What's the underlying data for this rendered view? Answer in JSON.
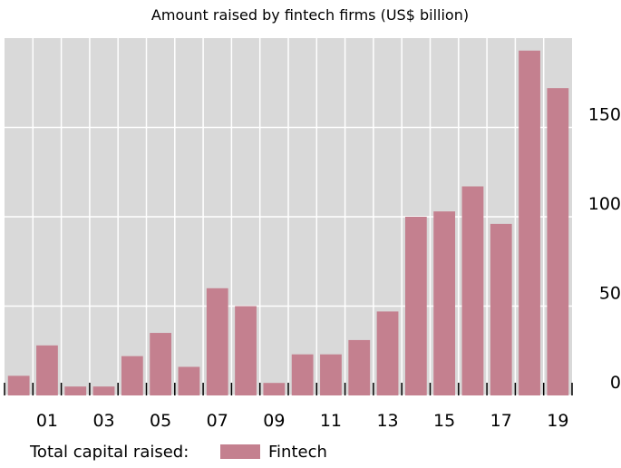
{
  "chart_data": {
    "type": "bar",
    "title": "Amount raised by fintech firms (US$ billion)",
    "categories": [
      null,
      "01",
      null,
      "03",
      null,
      "05",
      null,
      "07",
      null,
      "09",
      null,
      "11",
      null,
      "13",
      null,
      "15",
      null,
      "17",
      null,
      "19"
    ],
    "series": [
      {
        "name": "Fintech",
        "color": "#c4808f",
        "values": [
          11,
          28,
          5,
          5,
          22,
          35,
          16,
          60,
          50,
          7,
          23,
          23,
          31,
          47,
          100,
          103,
          117,
          96,
          193,
          172
        ]
      }
    ],
    "legend_title": "Total capital raised:",
    "ylim": [
      0,
      200
    ],
    "yticks": [
      0,
      50,
      100,
      150
    ],
    "grid": true
  }
}
